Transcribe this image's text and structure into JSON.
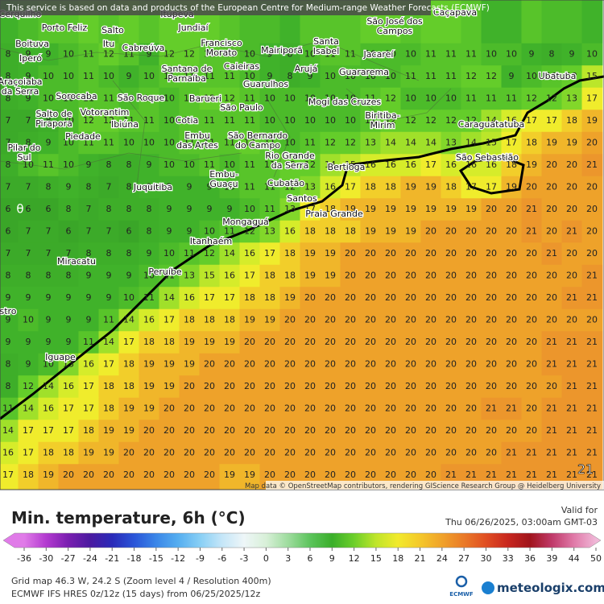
{
  "header": {
    "notice": "This service is based on data and products of the European Centre for Medium-range Weather Forecasts (ECMWF)",
    "attribution": "Map data © OpenStreetMap contributors, rendering GIScience Research Group @ Heidelberg University"
  },
  "map": {
    "grid": [
      [
        9,
        10,
        11,
        11,
        12,
        11,
        12,
        11,
        12,
        12,
        12,
        11,
        10,
        10,
        9,
        11,
        11,
        11,
        12,
        12,
        11,
        12,
        12,
        11,
        9,
        9,
        11,
        10,
        10,
        9
      ],
      [
        8,
        9,
        9,
        10,
        11,
        12,
        11,
        9,
        12,
        12,
        11,
        11,
        10,
        9,
        8,
        10,
        11,
        11,
        10,
        10,
        10,
        11,
        11,
        11,
        10,
        10,
        9,
        8,
        9,
        10
      ],
      [
        8,
        9,
        10,
        10,
        11,
        10,
        9,
        10,
        11,
        11,
        11,
        11,
        10,
        9,
        8,
        9,
        10,
        10,
        10,
        10,
        11,
        11,
        11,
        12,
        12,
        9,
        10,
        11,
        12,
        15
      ],
      [
        8,
        9,
        10,
        10,
        11,
        11,
        10,
        11,
        10,
        11,
        12,
        12,
        11,
        10,
        10,
        10,
        10,
        10,
        11,
        12,
        10,
        10,
        10,
        11,
        11,
        11,
        12,
        12,
        13,
        17
      ],
      [
        7,
        7,
        8,
        10,
        12,
        12,
        11,
        11,
        10,
        11,
        11,
        11,
        11,
        10,
        10,
        10,
        10,
        10,
        11,
        12,
        12,
        12,
        12,
        12,
        14,
        16,
        17,
        17,
        18,
        19
      ],
      [
        7,
        8,
        9,
        10,
        11,
        11,
        10,
        10,
        10,
        11,
        11,
        11,
        12,
        11,
        10,
        11,
        12,
        12,
        13,
        14,
        14,
        14,
        13,
        14,
        15,
        17,
        18,
        19,
        19,
        20
      ],
      [
        8,
        10,
        11,
        10,
        9,
        8,
        8,
        9,
        10,
        10,
        11,
        10,
        11,
        11,
        12,
        12,
        14,
        15,
        16,
        16,
        16,
        17,
        16,
        16,
        16,
        18,
        19,
        20,
        20,
        21
      ],
      [
        7,
        7,
        8,
        9,
        8,
        7,
        8,
        9,
        9,
        9,
        9,
        10,
        11,
        11,
        12,
        13,
        16,
        17,
        18,
        18,
        19,
        19,
        18,
        17,
        17,
        19,
        20,
        20,
        20,
        20
      ],
      [
        6,
        6,
        6,
        8,
        7,
        8,
        8,
        8,
        9,
        9,
        9,
        9,
        10,
        11,
        13,
        17,
        18,
        19,
        19,
        19,
        19,
        19,
        19,
        19,
        20,
        20,
        21,
        20,
        20,
        20
      ],
      [
        6,
        7,
        7,
        6,
        7,
        7,
        6,
        8,
        9,
        9,
        10,
        11,
        12,
        13,
        16,
        18,
        18,
        18,
        19,
        19,
        19,
        20,
        20,
        20,
        20,
        20,
        21,
        20,
        21,
        20
      ],
      [
        7,
        7,
        7,
        7,
        8,
        8,
        8,
        9,
        10,
        11,
        12,
        14,
        16,
        17,
        18,
        19,
        19,
        20,
        20,
        20,
        20,
        20,
        20,
        20,
        20,
        20,
        20,
        21,
        20,
        20
      ],
      [
        8,
        8,
        8,
        8,
        9,
        9,
        9,
        10,
        11,
        13,
        15,
        16,
        17,
        18,
        18,
        19,
        19,
        20,
        20,
        20,
        20,
        20,
        20,
        20,
        20,
        20,
        20,
        20,
        20,
        21
      ],
      [
        9,
        9,
        9,
        9,
        9,
        9,
        10,
        11,
        14,
        16,
        17,
        17,
        18,
        18,
        19,
        20,
        20,
        20,
        20,
        20,
        20,
        20,
        20,
        20,
        20,
        20,
        20,
        20,
        21,
        21
      ],
      [
        9,
        10,
        9,
        9,
        9,
        11,
        14,
        16,
        17,
        18,
        18,
        18,
        19,
        19,
        20,
        20,
        20,
        20,
        20,
        20,
        20,
        20,
        20,
        20,
        20,
        20,
        20,
        20,
        20,
        20
      ],
      [
        9,
        9,
        9,
        9,
        11,
        14,
        17,
        18,
        18,
        19,
        19,
        19,
        20,
        20,
        20,
        20,
        20,
        20,
        20,
        20,
        20,
        20,
        20,
        20,
        20,
        20,
        20,
        21,
        21,
        21
      ],
      [
        8,
        9,
        10,
        13,
        16,
        17,
        18,
        19,
        19,
        19,
        20,
        20,
        20,
        20,
        20,
        20,
        20,
        20,
        20,
        20,
        20,
        20,
        20,
        20,
        20,
        20,
        20,
        21,
        21,
        21
      ],
      [
        8,
        12,
        14,
        16,
        17,
        18,
        18,
        19,
        19,
        20,
        20,
        20,
        20,
        20,
        20,
        20,
        20,
        20,
        20,
        20,
        20,
        20,
        20,
        20,
        20,
        20,
        20,
        20,
        21,
        21
      ],
      [
        11,
        14,
        16,
        17,
        17,
        18,
        19,
        19,
        20,
        20,
        20,
        20,
        20,
        20,
        20,
        20,
        20,
        20,
        20,
        20,
        20,
        20,
        20,
        20,
        21,
        21,
        20,
        21,
        21,
        21
      ],
      [
        14,
        17,
        17,
        17,
        18,
        19,
        19,
        20,
        20,
        20,
        20,
        20,
        20,
        20,
        20,
        20,
        20,
        20,
        20,
        20,
        20,
        20,
        20,
        20,
        20,
        20,
        20,
        21,
        21,
        21
      ],
      [
        16,
        17,
        18,
        18,
        19,
        19,
        20,
        20,
        20,
        20,
        20,
        20,
        20,
        20,
        20,
        20,
        20,
        20,
        20,
        20,
        20,
        20,
        20,
        20,
        20,
        21,
        21,
        21,
        21,
        21
      ],
      [
        17,
        18,
        19,
        20,
        20,
        20,
        20,
        20,
        20,
        20,
        20,
        19,
        19,
        20,
        20,
        20,
        20,
        20,
        20,
        20,
        20,
        20,
        21,
        21,
        21,
        21,
        21,
        21,
        21,
        21
      ]
    ],
    "places": [
      {
        "lines": [
          "Cerquilho"
        ]
      },
      {
        "lines": [
          "Porto Feliz"
        ]
      },
      {
        "lines": [
          "Salto"
        ]
      },
      {
        "lines": [
          "Itupeva"
        ]
      },
      {
        "lines": [
          "Jundiaí"
        ]
      },
      {
        "lines": [
          "São José dos",
          "Campos"
        ]
      },
      {
        "lines": [
          "Caçapava"
        ]
      },
      {
        "lines": [
          "Boituva"
        ]
      },
      {
        "lines": [
          "Itu"
        ]
      },
      {
        "lines": [
          "Cabreúva"
        ]
      },
      {
        "lines": [
          "Francisco",
          "Morato"
        ]
      },
      {
        "lines": [
          "Mairiporã"
        ]
      },
      {
        "lines": [
          "Santa",
          "Isabel"
        ]
      },
      {
        "lines": [
          "Jacareí"
        ]
      },
      {
        "lines": [
          "Iperó"
        ]
      },
      {
        "lines": [
          "Caieiras"
        ]
      },
      {
        "lines": [
          "Santana de",
          "Parnaíba"
        ]
      },
      {
        "lines": [
          "Arujá"
        ]
      },
      {
        "lines": [
          "Guararema"
        ]
      },
      {
        "lines": [
          "Ubatuba"
        ]
      },
      {
        "lines": [
          "Araçoiaba",
          "da Serra"
        ]
      },
      {
        "lines": [
          "Guarulhos"
        ]
      },
      {
        "lines": [
          "Sorocaba"
        ]
      },
      {
        "lines": [
          "São Roque"
        ]
      },
      {
        "lines": [
          "Barueri"
        ]
      },
      {
        "lines": [
          "São Paulo"
        ]
      },
      {
        "lines": [
          "Mogi das Cruzes"
        ]
      },
      {
        "lines": [
          "Votorantim"
        ]
      },
      {
        "lines": [
          "Salto de",
          "Pirapora"
        ]
      },
      {
        "lines": [
          "Ibiúna"
        ]
      },
      {
        "lines": [
          "Cotia"
        ]
      },
      {
        "lines": [
          "Biritiba-",
          "Mirim"
        ]
      },
      {
        "lines": [
          "Caraguatatuba"
        ]
      },
      {
        "lines": [
          "Piedade"
        ]
      },
      {
        "lines": [
          "Embu",
          "das Artes"
        ]
      },
      {
        "lines": [
          "São Bernardo",
          "do Campo"
        ]
      },
      {
        "lines": [
          "Pilar do",
          "Sul"
        ]
      },
      {
        "lines": [
          "Rio Grande",
          "da Serra"
        ]
      },
      {
        "lines": [
          "São Sebastião"
        ]
      },
      {
        "lines": [
          "Bertioga"
        ]
      },
      {
        "lines": [
          "Embu-",
          "Guaçu"
        ]
      },
      {
        "lines": [
          "Cubatão"
        ]
      },
      {
        "lines": [
          "Juquitiba"
        ]
      },
      {
        "lines": [
          "Santos"
        ]
      },
      {
        "lines": [
          "Praia Grande"
        ]
      },
      {
        "lines": [
          "Mongaguá"
        ]
      },
      {
        "lines": [
          "Itanhaém"
        ]
      },
      {
        "lines": [
          "Miracatu"
        ]
      },
      {
        "lines": [
          "Peruíbe"
        ]
      },
      {
        "lines": [
          "stro"
        ]
      },
      {
        "lines": [
          "Iguape"
        ]
      }
    ],
    "marker": "θ",
    "corner_value": "21"
  },
  "legend": {
    "title": "Min. temperature, 6h (°C)",
    "valid_label": "Valid for",
    "valid_time": "Thu 06/26/2025, 03:00am GMT-03",
    "ticks": [
      -36,
      -30,
      -27,
      -24,
      -21,
      -18,
      -15,
      -12,
      -9,
      -6,
      -3,
      0,
      3,
      6,
      9,
      12,
      15,
      18,
      21,
      24,
      27,
      30,
      33,
      36,
      39,
      44,
      50
    ],
    "colors": [
      "#e07be8",
      "#b33ad0",
      "#7a1fb0",
      "#4b1aa0",
      "#2a2ab8",
      "#2a55d8",
      "#3a86e8",
      "#55aef0",
      "#88cff5",
      "#c5e6f8",
      "#eef6f8",
      "#d8f0d8",
      "#9edc9e",
      "#5cc45c",
      "#3aae2a",
      "#6ccf2a",
      "#bfe52a",
      "#f2ea2c",
      "#f4c82a",
      "#f0a22a",
      "#ea7a28",
      "#e04e22",
      "#c8261e",
      "#a0141c",
      "#c03a6a",
      "#e07aa8",
      "#f0b8d8"
    ],
    "grid_info": "Grid map 46.3 W, 24.2 S (Zoom level 4 / Resolution 400m)",
    "model_info": "ECMWF IFS HRES 0z/12z (15 days) from 06/25/2025/12z",
    "ecmwf": "ECMWF",
    "brand": "meteologix.com"
  }
}
